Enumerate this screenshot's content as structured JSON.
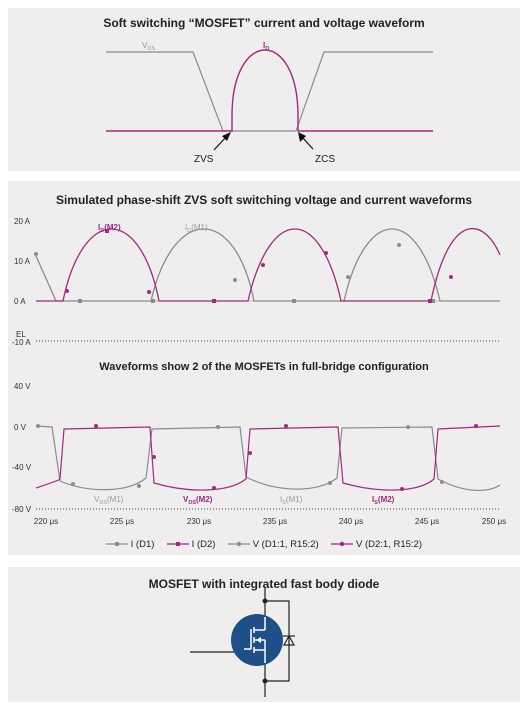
{
  "panel_soft_switching": {
    "title": "Soft switching “MOSFET” current and voltage waveform",
    "labels": {
      "vds": "V",
      "vds_sub": "DS",
      "id": "I",
      "id_sub": "D",
      "zvs": "ZVS",
      "zcs": "ZCS"
    },
    "colors": {
      "vds": "#8c8c8c",
      "id": "#9b2d7f"
    }
  },
  "panel_phase_shift": {
    "title": "Simulated phase-shift ZVS soft switching voltage and current waveforms",
    "subtitle": "Waveforms show 2 of the MOSFETs in full-bridge configuration",
    "current_axis": {
      "ticks": [
        "20 A",
        "10 A",
        "0 A",
        "-10 A"
      ],
      "marker": "EL"
    },
    "voltage_axis": {
      "ticks": [
        "40 V",
        "0 V",
        "-40 V",
        "-80 V"
      ]
    },
    "time_axis": {
      "ticks": [
        "220 μs",
        "225 μs",
        "230 μs",
        "235 μs",
        "240 μs",
        "245 μs",
        "250 μs"
      ]
    },
    "series_labels": {
      "id_m2": {
        "main": "I",
        "sub": "D",
        "suffix": "(M2)"
      },
      "id_m1": {
        "main": "I",
        "sub": "D",
        "suffix": "(M1)"
      },
      "vds_m1": {
        "main": "V",
        "sub": "DS",
        "suffix": "(M1)"
      },
      "vds_m2": {
        "main": "V",
        "sub": "DS",
        "suffix": "(M2)"
      },
      "is_m1": {
        "main": "I",
        "sub": "S",
        "suffix": "(M1)"
      },
      "is_m2": {
        "main": "I",
        "sub": "S",
        "suffix": "(M2)"
      }
    },
    "legend": [
      {
        "label": "I (D1)",
        "color": "#8c8c8c",
        "marker": "square"
      },
      {
        "label": "I (D2)",
        "color": "#9b2d7f",
        "marker": "square"
      },
      {
        "label": "V (D1:1, R15:2)",
        "color": "#8c8c8c",
        "marker": "circle"
      },
      {
        "label": "V (D2:1, R15:2)",
        "color": "#9b2d7f",
        "marker": "circle"
      }
    ]
  },
  "chart_data": {
    "type": "line",
    "title": "Simulated phase-shift ZVS soft switching voltage and current waveforms",
    "x_unit": "μs",
    "xlim": [
      220,
      250
    ],
    "current_plot": {
      "ylim": [
        -10,
        20
      ],
      "series": [
        {
          "name": "I (D1)",
          "color": "#8c8c8c",
          "x": [
            220,
            221.5,
            222.5,
            226,
            227.5,
            229,
            233,
            235,
            236.5,
            240,
            242.5,
            244,
            247.5,
            250
          ],
          "values": [
            12,
            0,
            0,
            0,
            0,
            0,
            17,
            0,
            0,
            0,
            16,
            0,
            0,
            0
          ]
        },
        {
          "name": "I (D2)",
          "color": "#9b2d7f",
          "x": [
            220,
            221.5,
            225,
            228,
            229,
            233,
            234.5,
            238,
            241,
            243,
            247.5,
            249,
            250
          ],
          "values": [
            0,
            0,
            17,
            0,
            0,
            0,
            0,
            16.5,
            0,
            0,
            0,
            16,
            12
          ]
        }
      ]
    },
    "voltage_plot": {
      "ylim": [
        -80,
        40
      ],
      "series": [
        {
          "name": "V (D1:1, R15:2)",
          "color": "#8c8c8c",
          "x": [
            220,
            221,
            222,
            228,
            228.6,
            233,
            234,
            239,
            239.6,
            244,
            245,
            250
          ],
          "values": [
            0,
            0,
            -63,
            -63,
            0,
            0,
            -63,
            -63,
            0,
            0,
            -63,
            -63
          ]
        },
        {
          "name": "V (D2:1, R15:2)",
          "color": "#9b2d7f",
          "x": [
            220,
            222.5,
            223,
            228.5,
            229,
            234,
            234.5,
            239.5,
            240,
            244.5,
            245,
            250
          ],
          "values": [
            -63,
            -63,
            0,
            0,
            -63,
            -63,
            0,
            0,
            -63,
            -63,
            0,
            0
          ]
        }
      ]
    },
    "legend_position": "bottom"
  },
  "panel_mosfet": {
    "title": "MOSFET with integrated fast body diode",
    "colors": {
      "badge": "#1e4f86",
      "line": "#222222"
    }
  }
}
